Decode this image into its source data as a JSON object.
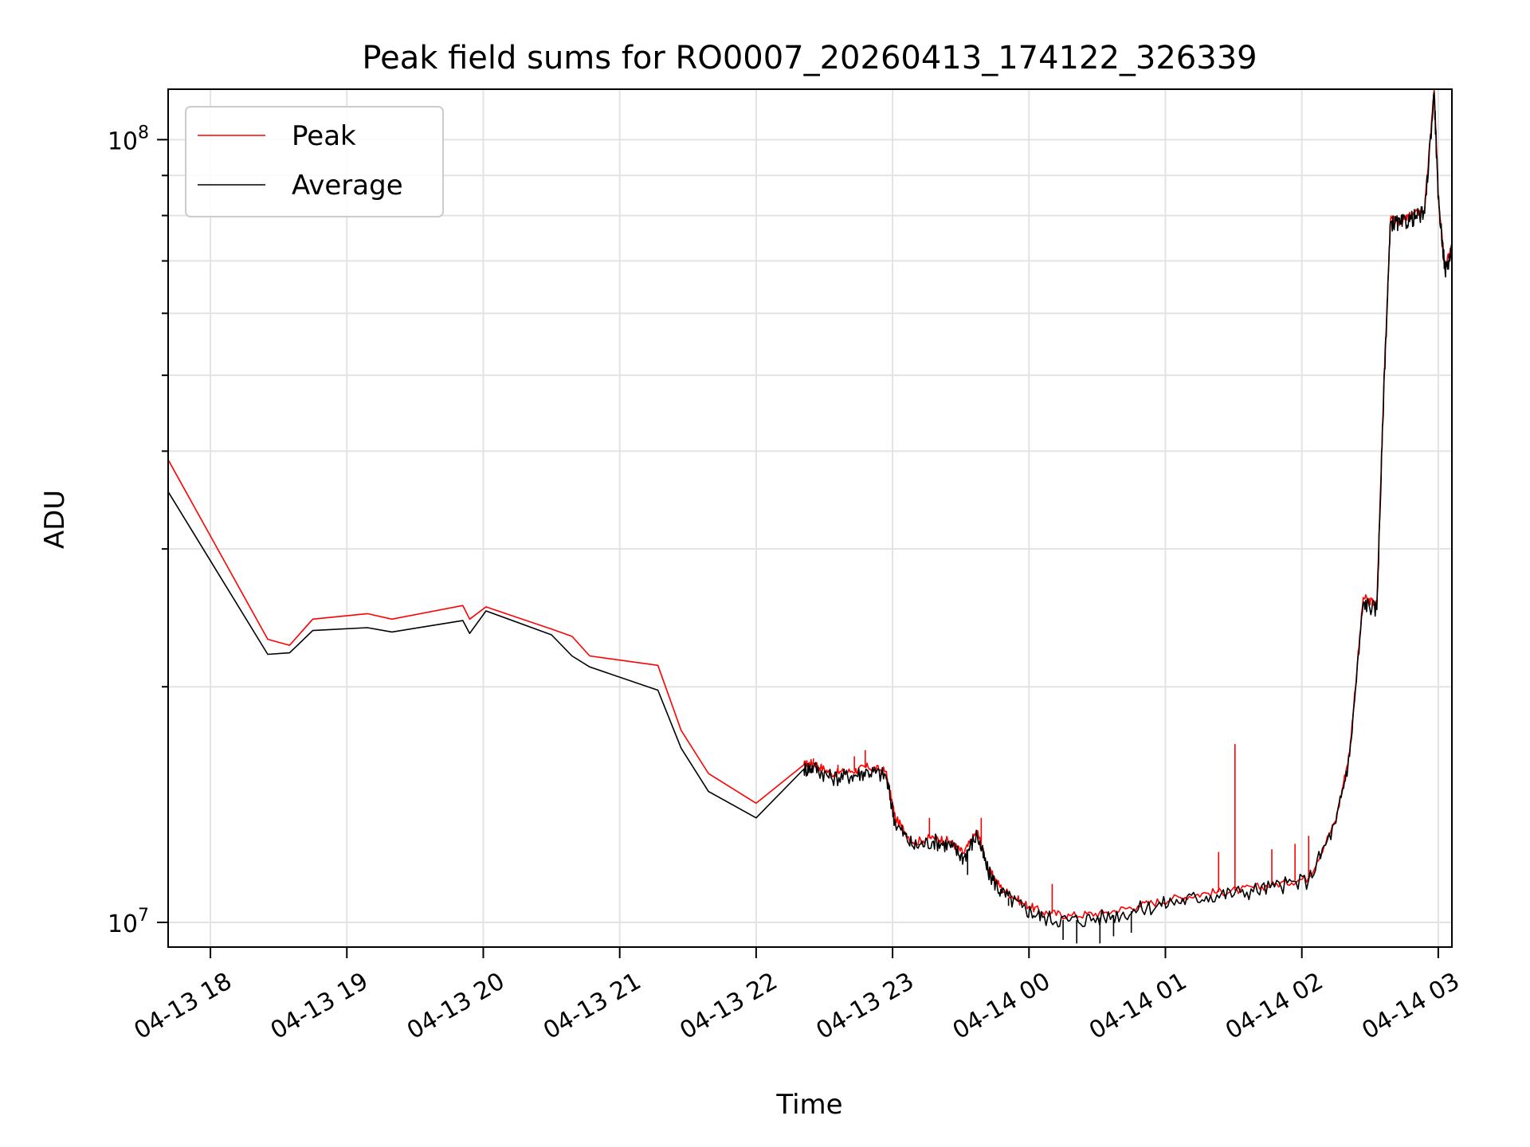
{
  "chart_data": {
    "type": "line",
    "title": "Peak field sums for RO0007_20260413_174122_326339",
    "xlabel": "Time",
    "ylabel": "ADU",
    "yscale": "log",
    "ylim": [
      9300000,
      116000000
    ],
    "xlim": [
      17.69,
      27.1
    ],
    "grid": true,
    "legend_position": "upper-left",
    "x_ticks": [
      {
        "value": 18,
        "label": "04-13 18"
      },
      {
        "value": 19,
        "label": "04-13 19"
      },
      {
        "value": 20,
        "label": "04-13 20"
      },
      {
        "value": 21,
        "label": "04-13 21"
      },
      {
        "value": 22,
        "label": "04-13 22"
      },
      {
        "value": 23,
        "label": "04-13 23"
      },
      {
        "value": 24,
        "label": "04-14 00"
      },
      {
        "value": 25,
        "label": "04-14 01"
      },
      {
        "value": 26,
        "label": "04-14 02"
      },
      {
        "value": 27,
        "label": "04-14 03"
      }
    ],
    "y_major_ticks": [
      {
        "value": 10000000,
        "mantissa": "10",
        "exponent": "7"
      },
      {
        "value": 100000000,
        "mantissa": "10",
        "exponent": "8"
      }
    ],
    "y_minor_ticks": [
      20000000,
      30000000,
      40000000,
      50000000,
      60000000,
      70000000,
      80000000,
      90000000
    ],
    "series": [
      {
        "name": "Peak",
        "color": "#ff0000",
        "x": [
          17.69,
          18.42,
          18.58,
          18.75,
          19.15,
          19.33,
          19.85,
          19.9,
          20.02,
          20.5,
          20.65,
          20.78,
          21.28,
          21.45,
          21.65,
          22.0,
          22.35,
          22.42,
          22.55,
          22.7,
          22.82,
          22.95,
          23.02,
          23.15,
          23.3,
          23.42,
          23.52,
          23.62,
          23.7,
          23.8,
          23.95,
          24.1,
          24.3,
          24.55,
          24.8,
          25.05,
          25.3,
          25.55,
          25.8,
          26.05,
          26.25,
          26.35,
          26.45,
          26.55,
          26.6,
          26.65,
          26.72,
          26.8,
          26.9,
          26.97,
          27.0,
          27.05,
          27.1
        ],
        "y": [
          39000000,
          23000000,
          22600000,
          24400000,
          24800000,
          24400000,
          25400000,
          24400000,
          25300000,
          23700000,
          23200000,
          21900000,
          21300000,
          17600000,
          15500000,
          14200000,
          15900000,
          16000000,
          15500000,
          15600000,
          15800000,
          15600000,
          13600000,
          12650000,
          12850000,
          12700000,
          12250000,
          13100000,
          11700000,
          11050000,
          10600000,
          10300000,
          10200000,
          10280000,
          10500000,
          10720000,
          10900000,
          11000000,
          11180000,
          11400000,
          13500000,
          16500000,
          26000000,
          25500000,
          48000000,
          79000000,
          78500000,
          80000000,
          81500000,
          116000000,
          85000000,
          69000000,
          73000000
        ],
        "spikes": [
          [
            22.42,
            16200000
          ],
          [
            22.6,
            15900000
          ],
          [
            22.72,
            16300000
          ],
          [
            22.8,
            16600000
          ],
          [
            23.27,
            13600000
          ],
          [
            23.65,
            13600000
          ],
          [
            24.17,
            11200000
          ],
          [
            25.39,
            12300000
          ],
          [
            25.51,
            16900000
          ],
          [
            25.78,
            12400000
          ],
          [
            25.95,
            12600000
          ],
          [
            26.05,
            12900000
          ]
        ]
      },
      {
        "name": "Average",
        "color": "#000000",
        "x": [
          17.69,
          18.42,
          18.58,
          18.75,
          19.15,
          19.33,
          19.85,
          19.9,
          20.02,
          20.5,
          20.65,
          20.78,
          21.28,
          21.45,
          21.65,
          22.0,
          22.35,
          22.42,
          22.55,
          22.7,
          22.82,
          22.95,
          23.02,
          23.15,
          23.3,
          23.42,
          23.52,
          23.62,
          23.7,
          23.8,
          23.95,
          24.1,
          24.3,
          24.55,
          24.8,
          25.05,
          25.3,
          25.55,
          25.8,
          26.05,
          26.25,
          26.35,
          26.45,
          26.55,
          26.6,
          26.65,
          26.72,
          26.8,
          26.9,
          26.97,
          27.0,
          27.05,
          27.1
        ],
        "y": [
          35500000,
          22000000,
          22100000,
          23600000,
          23800000,
          23500000,
          24300000,
          23400000,
          25000000,
          23300000,
          21900000,
          21200000,
          19800000,
          16700000,
          14700000,
          13600000,
          15700000,
          15800000,
          15300000,
          15400000,
          15600000,
          15400000,
          13400000,
          12500000,
          12700000,
          12550000,
          12100000,
          12950000,
          11600000,
          10900000,
          10450000,
          10150000,
          10050000,
          10150000,
          10380000,
          10620000,
          10800000,
          10920000,
          11100000,
          11320000,
          13400000,
          16300000,
          25600000,
          25100000,
          47500000,
          78500000,
          78000000,
          79200000,
          80500000,
          115000000,
          84000000,
          68000000,
          72000000
        ],
        "dips": [
          [
            24.25,
            9500000
          ],
          [
            24.35,
            9400000
          ],
          [
            24.52,
            9400000
          ],
          [
            24.62,
            9600000
          ],
          [
            24.75,
            9700000
          ],
          [
            23.55,
            11500000
          ],
          [
            23.85,
            10500000
          ]
        ]
      }
    ]
  }
}
